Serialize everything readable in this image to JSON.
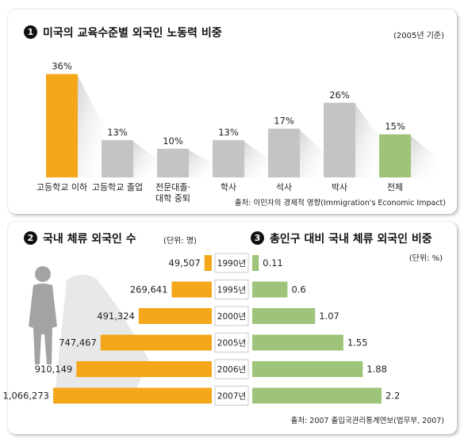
{
  "chart1": {
    "number": "1",
    "title": "미국의 교육수준별 외국인 노동력 비중",
    "note": "(2005년 기준)",
    "source": "출처: 이민자의 경제적 영향(Immigration's Economic Impact)",
    "colors": {
      "highlight": "#f5a71c",
      "normal": "#c4c4c4",
      "total": "#9dc47a"
    }
  },
  "chart2": {
    "number": "2",
    "title": "국내 체류 외국인 수",
    "unit": "(단위: 명)",
    "color": "#f5a71c"
  },
  "chart3": {
    "number": "3",
    "title": "총인구 대비 국내 체류 외국인 비중",
    "unit": "(단위: %)",
    "source": "출처: 2007 출입국관리통계연보(법무부, 2007)",
    "color": "#9dc47a"
  },
  "chart_data": [
    {
      "type": "bar",
      "title": "미국의 교육수준별 외국인 노동력 비중",
      "categories": [
        [
          "고등학교 이하"
        ],
        [
          "고등학교 졸업"
        ],
        [
          "전문대졸·",
          "대학 중퇴"
        ],
        [
          "학사"
        ],
        [
          "석사"
        ],
        [
          "박사"
        ],
        [
          "전체"
        ]
      ],
      "values": [
        36,
        13,
        10,
        13,
        17,
        26,
        15
      ],
      "labels": [
        "36%",
        "13%",
        "10%",
        "13%",
        "17%",
        "26%",
        "15%"
      ],
      "ylim": [
        0,
        40
      ]
    },
    {
      "type": "bar",
      "orientation": "horizontal",
      "title": "국내 체류 외국인 수",
      "categories": [
        "1990년",
        "1995년",
        "2000년",
        "2005년",
        "2006년",
        "2007년"
      ],
      "values": [
        49507,
        269641,
        491324,
        747467,
        910149,
        1066273
      ],
      "labels": [
        "49,507",
        "269,641",
        "491,324",
        "747,467",
        "910,149",
        "1,066,273"
      ]
    },
    {
      "type": "bar",
      "orientation": "horizontal",
      "title": "총인구 대비 국내 체류 외국인 비중",
      "categories": [
        "1990년",
        "1995년",
        "2000년",
        "2005년",
        "2006년",
        "2007년"
      ],
      "values": [
        0.11,
        0.6,
        1.07,
        1.55,
        1.88,
        2.2
      ],
      "labels": [
        "0.11",
        "0.6",
        "1.07",
        "1.55",
        "1.88",
        "2.2"
      ]
    }
  ]
}
